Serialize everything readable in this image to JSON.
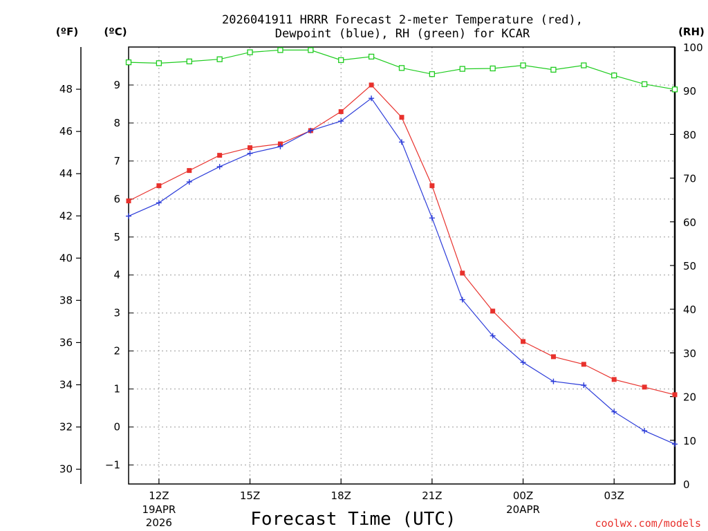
{
  "chart_data": {
    "type": "line",
    "title_line1": "2026041911 HRRR Forecast 2-meter Temperature (red),",
    "title_line2": "Dewpoint (blue), RH (green) for KCAR",
    "xlabel": "Forecast Time (UTC)",
    "credit": "coolwx.com/models",
    "units": {
      "f": "(ºF)",
      "c": "(ºC)",
      "rh": "(RH)"
    },
    "colors": {
      "temperature": "#e8312c",
      "dewpoint": "#2b3bd9",
      "rh": "#1fcc1f"
    },
    "hours": [
      11,
      12,
      13,
      14,
      15,
      16,
      17,
      18,
      19,
      20,
      21,
      22,
      23,
      24,
      25,
      26,
      27,
      28,
      29
    ],
    "xlim": [
      11,
      29
    ],
    "x_ticks": [
      {
        "hour": 12,
        "l1": "12Z",
        "l2": "19APR",
        "l3": "2026"
      },
      {
        "hour": 15,
        "l1": "15Z",
        "l2": "",
        "l3": ""
      },
      {
        "hour": 18,
        "l1": "18Z",
        "l2": "",
        "l3": ""
      },
      {
        "hour": 21,
        "l1": "21Z",
        "l2": "",
        "l3": ""
      },
      {
        "hour": 24,
        "l1": "00Z",
        "l2": "20APR",
        "l3": ""
      },
      {
        "hour": 27,
        "l1": "03Z",
        "l2": "",
        "l3": ""
      }
    ],
    "ylim_c": [
      -1.5,
      10
    ],
    "c_ticks": [
      -1,
      0,
      1,
      2,
      3,
      4,
      5,
      6,
      7,
      8,
      9
    ],
    "ylim_f": [
      29.3,
      50
    ],
    "f_ticks": [
      30,
      32,
      34,
      36,
      38,
      40,
      42,
      44,
      46,
      48
    ],
    "ylim_rh": [
      0,
      100
    ],
    "rh_ticks": [
      0,
      10,
      20,
      30,
      40,
      50,
      60,
      70,
      80,
      90,
      100
    ],
    "series": [
      {
        "name": "Temperature",
        "key": "temperature",
        "axis": "c",
        "marker": "filled-square",
        "values": [
          5.95,
          6.35,
          6.75,
          7.15,
          7.35,
          7.45,
          7.8,
          8.3,
          9.0,
          8.15,
          6.35,
          4.05,
          3.05,
          2.25,
          1.85,
          1.65,
          1.25,
          1.05,
          0.85
        ]
      },
      {
        "name": "Dewpoint",
        "key": "dewpoint",
        "axis": "c",
        "marker": "plus",
        "values": [
          5.55,
          5.9,
          6.45,
          6.85,
          7.2,
          7.38,
          7.8,
          8.05,
          8.65,
          7.5,
          5.5,
          3.35,
          2.4,
          1.7,
          1.2,
          1.1,
          0.4,
          -0.1,
          -0.45
        ]
      },
      {
        "name": "RH",
        "key": "rh",
        "axis": "rh",
        "marker": "open-square",
        "values": [
          96.5,
          96.3,
          96.7,
          97.2,
          98.8,
          99.3,
          99.3,
          97.0,
          97.8,
          95.2,
          93.8,
          95.0,
          95.1,
          95.8,
          94.8,
          95.8,
          93.5,
          91.5,
          90.3
        ]
      }
    ]
  }
}
